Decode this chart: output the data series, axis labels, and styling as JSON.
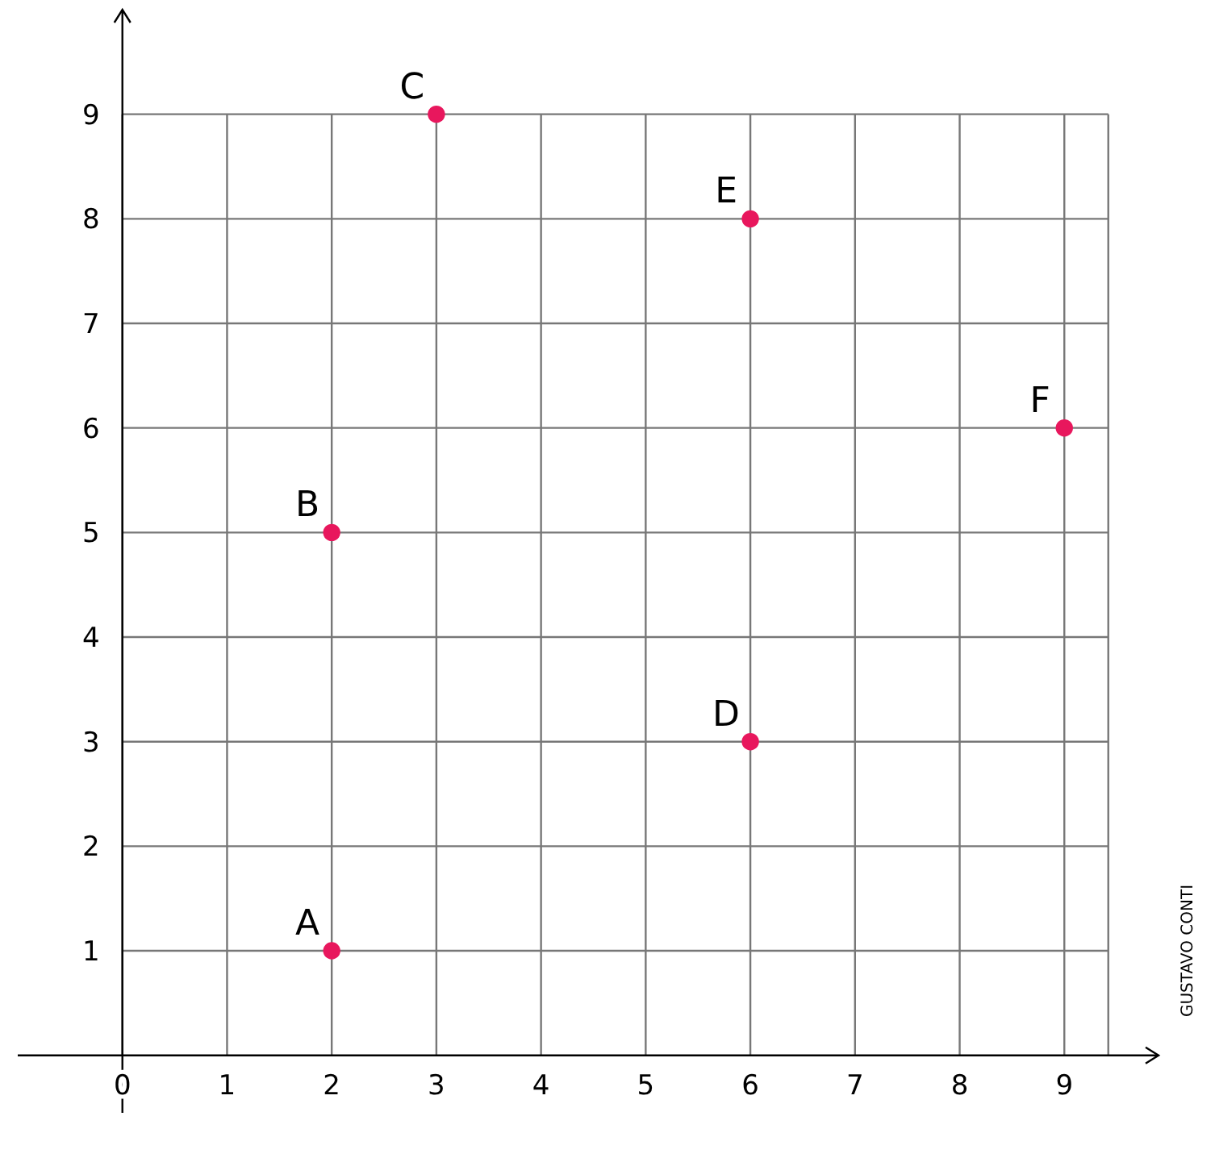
{
  "chart_data": {
    "type": "scatter",
    "x": [
      2,
      2,
      3,
      6,
      6,
      9
    ],
    "values": [
      1,
      5,
      9,
      3,
      8,
      6
    ],
    "color": "#e8175d",
    "marker": "circle",
    "grid": true,
    "xlim": [
      -1,
      9.9
    ],
    "ylim": [
      -0.55,
      10
    ],
    "xticks": [
      0,
      1,
      2,
      3,
      4,
      5,
      6,
      7,
      8,
      9
    ],
    "yticks": [
      1,
      2,
      3,
      4,
      5,
      6,
      7,
      8,
      9
    ],
    "annotations": [
      {
        "text": "A",
        "x": 2,
        "y": 1
      },
      {
        "text": "B",
        "x": 2,
        "y": 5
      },
      {
        "text": "C",
        "x": 3,
        "y": 9
      },
      {
        "text": "D",
        "x": 6,
        "y": 3
      },
      {
        "text": "E",
        "x": 6,
        "y": 8
      },
      {
        "text": "F",
        "x": 9,
        "y": 6
      },
      "GUSTAVO CONTI"
    ]
  }
}
